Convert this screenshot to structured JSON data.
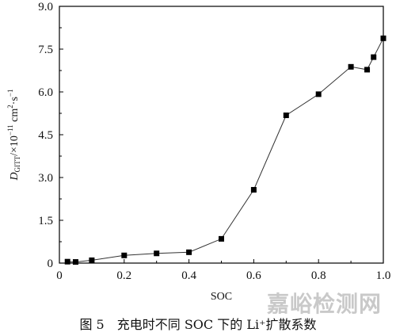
{
  "chart_data": {
    "type": "line",
    "xlabel": "SOC",
    "ylabel": "D_GITT/×10^-11 cm^2·s^-1",
    "ylabel_parts": {
      "main": "D",
      "sub": "GITT",
      "unit_a": "/×10",
      "exp_a": "−11",
      "unit_b": " cm",
      "exp_b": "2",
      "unit_c": "·s",
      "exp_c": "−1"
    },
    "xlim": [
      0,
      1.0
    ],
    "ylim": [
      0,
      9.0
    ],
    "xticks": [
      "0",
      "0.2",
      "0.4",
      "0.6",
      "0.8",
      "1.0"
    ],
    "xtick_values": [
      0,
      0.2,
      0.4,
      0.6,
      0.8,
      1.0
    ],
    "yticks": [
      "0",
      "1.5",
      "3.0",
      "4.5",
      "6.0",
      "7.5",
      "9.0"
    ],
    "ytick_values": [
      0,
      1.5,
      3.0,
      4.5,
      6.0,
      7.5,
      9.0
    ],
    "grid": false,
    "series": [
      {
        "marker": "square",
        "color": "#000000",
        "x": [
          0.025,
          0.05,
          0.1,
          0.2,
          0.3,
          0.4,
          0.5,
          0.6,
          0.7,
          0.8,
          0.9,
          0.95,
          0.97,
          1.0
        ],
        "y": [
          0.05,
          0.04,
          0.1,
          0.27,
          0.34,
          0.38,
          0.85,
          2.57,
          5.18,
          5.92,
          6.88,
          6.78,
          7.22,
          7.88
        ]
      }
    ]
  },
  "caption": "图 5　充电时不同 SOC 下的 Li⁺扩散系数",
  "watermark": "嘉峪检测网"
}
